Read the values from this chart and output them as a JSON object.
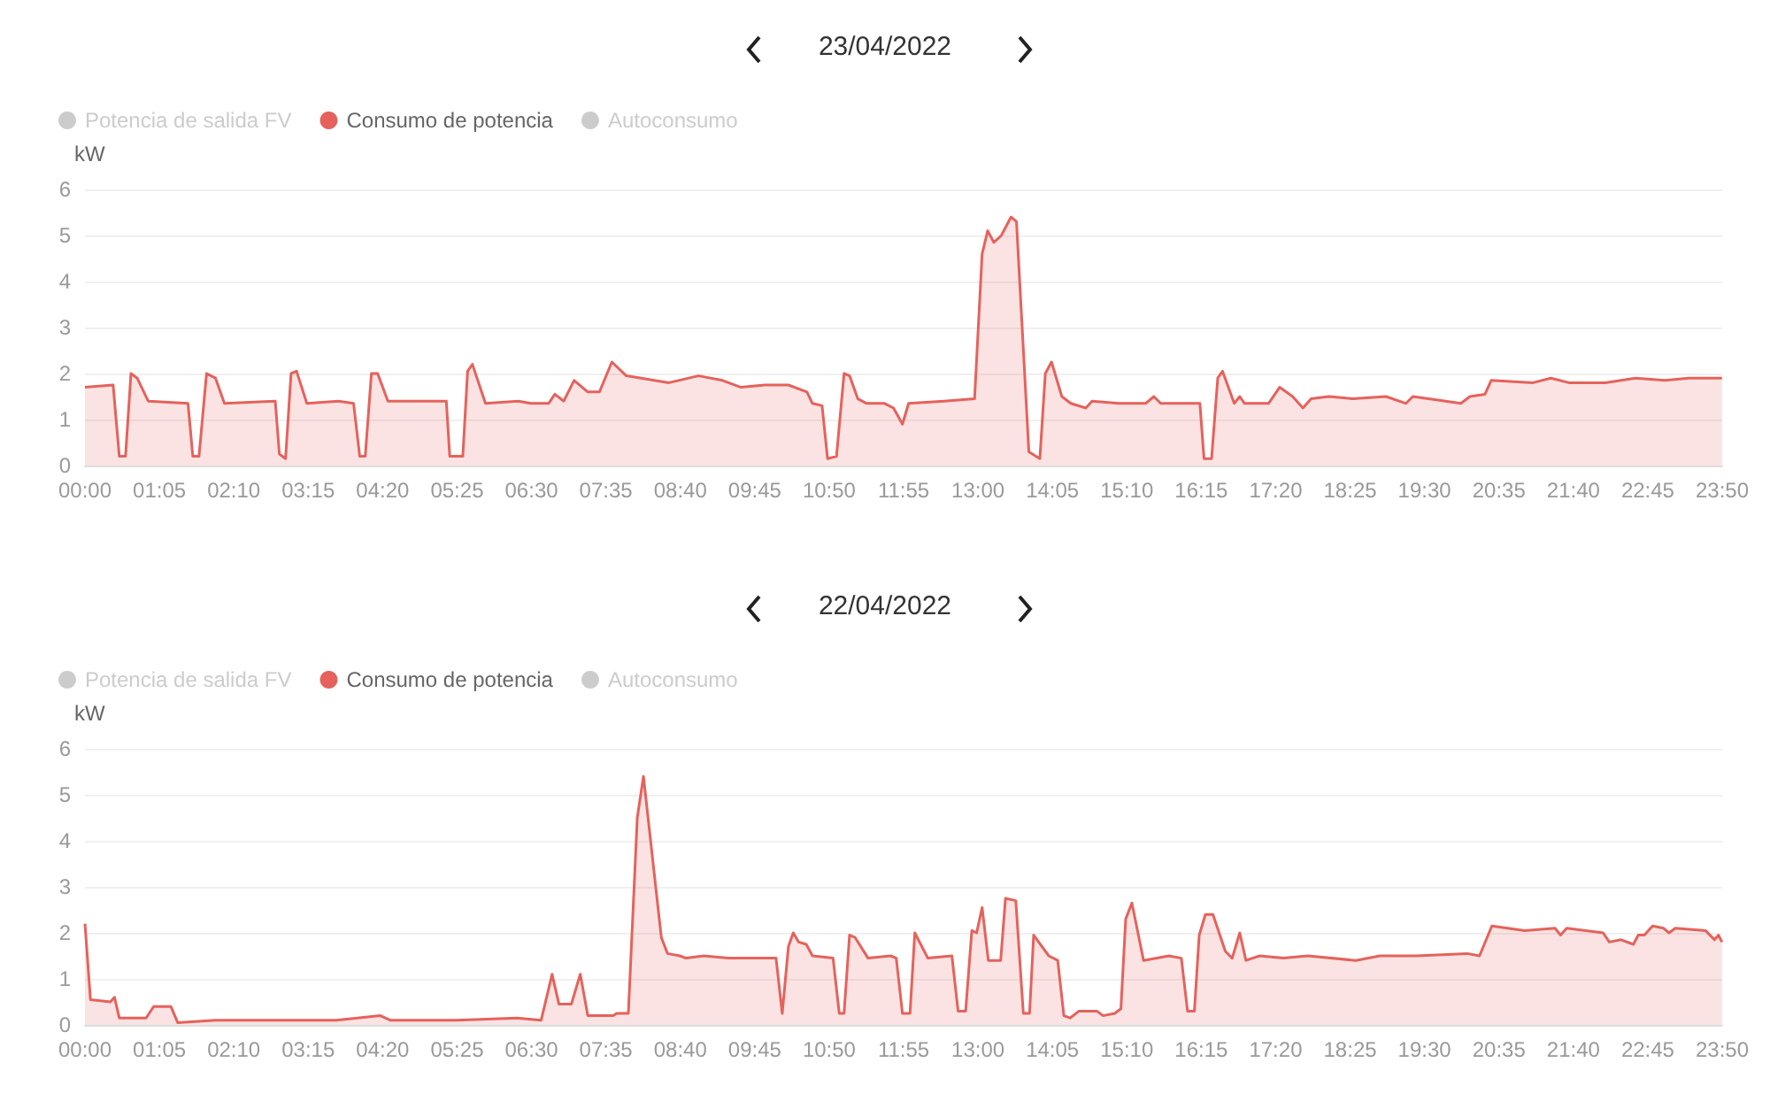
{
  "chart_data": [
    {
      "type": "area",
      "title": "23/04/2022",
      "ylabel": "kW",
      "legend": "top left",
      "grid": "y",
      "xlim": [
        0,
        23.8333
      ],
      "ylim": [
        0,
        6
      ],
      "yticks": [
        0,
        1,
        2,
        3,
        4,
        5,
        6
      ],
      "xticks": [
        {
          "value": 0,
          "label": "00:00"
        },
        {
          "value": 1.0833,
          "label": "01:05"
        },
        {
          "value": 2.1667,
          "label": "02:10"
        },
        {
          "value": 3.25,
          "label": "03:15"
        },
        {
          "value": 4.3333,
          "label": "04:20"
        },
        {
          "value": 5.4167,
          "label": "05:25"
        },
        {
          "value": 6.5,
          "label": "06:30"
        },
        {
          "value": 7.5833,
          "label": "07:35"
        },
        {
          "value": 8.6667,
          "label": "08:40"
        },
        {
          "value": 9.75,
          "label": "09:45"
        },
        {
          "value": 10.8333,
          "label": "10:50"
        },
        {
          "value": 11.9167,
          "label": "11:55"
        },
        {
          "value": 13,
          "label": "13:00"
        },
        {
          "value": 14.0833,
          "label": "14:05"
        },
        {
          "value": 15.1667,
          "label": "15:10"
        },
        {
          "value": 16.25,
          "label": "16:15"
        },
        {
          "value": 17.3333,
          "label": "17:20"
        },
        {
          "value": 18.4167,
          "label": "18:25"
        },
        {
          "value": 19.5,
          "label": "19:30"
        },
        {
          "value": 20.5833,
          "label": "20:35"
        },
        {
          "value": 21.6667,
          "label": "21:40"
        },
        {
          "value": 22.75,
          "label": "22:45"
        },
        {
          "value": 23.8333,
          "label": "23:50"
        }
      ],
      "series": [
        {
          "name": "Potencia de salida FV"
        },
        {
          "name": "Consumo de potencia",
          "color": "#e5625c",
          "x": [
            0,
            0.41,
            0.5,
            0.59,
            0.67,
            0.76,
            0.92,
            1.5,
            1.57,
            1.66,
            1.77,
            1.9,
            2.03,
            2.77,
            2.83,
            2.92,
            3.0,
            3.08,
            3.23,
            3.69,
            3.91,
            4.0,
            4.08,
            4.17,
            4.26,
            4.41,
            5.26,
            5.31,
            5.5,
            5.57,
            5.64,
            5.83,
            6.31,
            6.49,
            6.75,
            6.84,
            6.97,
            7.12,
            7.32,
            7.49,
            7.67,
            7.88,
            8.5,
            8.93,
            9.28,
            9.55,
            9.9,
            10.24,
            10.51,
            10.59,
            10.73,
            10.81,
            10.94,
            11.05,
            11.13,
            11.25,
            11.38,
            11.64,
            11.77,
            11.9,
            11.99,
            12.51,
            12.95,
            13.06,
            13.14,
            13.23,
            13.34,
            13.48,
            13.56,
            13.74,
            13.9,
            13.98,
            14.07,
            14.22,
            14.35,
            14.57,
            14.66,
            15.05,
            15.44,
            15.56,
            15.66,
            16.23,
            16.29,
            16.4,
            16.49,
            16.56,
            16.73,
            16.81,
            16.88,
            17.23,
            17.39,
            17.58,
            17.73,
            17.85,
            18.11,
            18.46,
            18.94,
            19.23,
            19.33,
            20.03,
            20.16,
            20.38,
            20.47,
            21.08,
            21.34,
            21.6,
            22.13,
            22.57,
            23.0,
            23.35,
            23.83
          ],
          "values": [
            1.7,
            1.75,
            0.2,
            0.2,
            2.0,
            1.9,
            1.4,
            1.35,
            0.2,
            0.2,
            2.0,
            1.9,
            1.35,
            1.4,
            0.25,
            0.15,
            2.0,
            2.05,
            1.35,
            1.4,
            1.35,
            0.2,
            0.2,
            2.0,
            2.0,
            1.4,
            1.4,
            0.2,
            0.2,
            2.05,
            2.2,
            1.35,
            1.4,
            1.35,
            1.35,
            1.55,
            1.4,
            1.85,
            1.6,
            1.6,
            2.25,
            1.95,
            1.8,
            1.95,
            1.85,
            1.7,
            1.75,
            1.75,
            1.6,
            1.35,
            1.3,
            0.15,
            0.2,
            2.0,
            1.95,
            1.45,
            1.35,
            1.35,
            1.25,
            0.9,
            1.35,
            1.4,
            1.45,
            4.6,
            5.1,
            4.85,
            5.0,
            5.4,
            5.3,
            0.3,
            0.15,
            2.0,
            2.25,
            1.5,
            1.35,
            1.25,
            1.4,
            1.35,
            1.35,
            1.5,
            1.35,
            1.35,
            0.15,
            0.15,
            1.9,
            2.05,
            1.35,
            1.5,
            1.35,
            1.35,
            1.7,
            1.5,
            1.25,
            1.45,
            1.5,
            1.45,
            1.5,
            1.35,
            1.5,
            1.35,
            1.5,
            1.55,
            1.85,
            1.8,
            1.9,
            1.8,
            1.8,
            1.9,
            1.85,
            1.9,
            1.9
          ]
        },
        {
          "name": "Autoconsumo"
        }
      ]
    },
    {
      "type": "area",
      "title": "22/04/2022",
      "ylabel": "kW",
      "legend": "top left",
      "grid": "y",
      "xlim": [
        0,
        23.8333
      ],
      "ylim": [
        0,
        6
      ],
      "yticks": [
        0,
        1,
        2,
        3,
        4,
        5,
        6
      ],
      "xticks": [
        {
          "value": 0,
          "label": "00:00"
        },
        {
          "value": 1.0833,
          "label": "01:05"
        },
        {
          "value": 2.1667,
          "label": "02:10"
        },
        {
          "value": 3.25,
          "label": "03:15"
        },
        {
          "value": 4.3333,
          "label": "04:20"
        },
        {
          "value": 5.4167,
          "label": "05:25"
        },
        {
          "value": 6.5,
          "label": "06:30"
        },
        {
          "value": 7.5833,
          "label": "07:35"
        },
        {
          "value": 8.6667,
          "label": "08:40"
        },
        {
          "value": 9.75,
          "label": "09:45"
        },
        {
          "value": 10.8333,
          "label": "10:50"
        },
        {
          "value": 11.9167,
          "label": "11:55"
        },
        {
          "value": 13,
          "label": "13:00"
        },
        {
          "value": 14.0833,
          "label": "14:05"
        },
        {
          "value": 15.1667,
          "label": "15:10"
        },
        {
          "value": 16.25,
          "label": "16:15"
        },
        {
          "value": 17.3333,
          "label": "17:20"
        },
        {
          "value": 18.4167,
          "label": "18:25"
        },
        {
          "value": 19.5,
          "label": "19:30"
        },
        {
          "value": 20.5833,
          "label": "20:35"
        },
        {
          "value": 21.6667,
          "label": "21:40"
        },
        {
          "value": 22.75,
          "label": "22:45"
        },
        {
          "value": 23.8333,
          "label": "23:50"
        }
      ],
      "series": [
        {
          "name": "Potencia de salida FV"
        },
        {
          "name": "Consumo de potencia",
          "color": "#e5625c",
          "x": [
            0,
            0.08,
            0.37,
            0.43,
            0.5,
            0.89,
            1.0,
            1.25,
            1.35,
            1.9,
            2.78,
            3.66,
            4.3,
            4.45,
            5.41,
            6.29,
            6.64,
            6.8,
            6.9,
            7.08,
            7.21,
            7.32,
            7.56,
            7.69,
            7.74,
            7.91,
            8.04,
            8.13,
            8.39,
            8.48,
            8.66,
            8.75,
            9.01,
            9.36,
            10.06,
            10.15,
            10.24,
            10.31,
            10.39,
            10.5,
            10.59,
            10.89,
            10.98,
            11.05,
            11.13,
            11.21,
            11.4,
            11.73,
            11.81,
            11.9,
            12.01,
            12.08,
            12.27,
            12.62,
            12.71,
            12.82,
            12.91,
            12.98,
            13.06,
            13.15,
            13.33,
            13.4,
            13.55,
            13.66,
            13.75,
            13.81,
            14.03,
            14.16,
            14.25,
            14.34,
            14.47,
            14.73,
            14.82,
            14.99,
            15.08,
            15.15,
            15.24,
            15.41,
            15.78,
            15.96,
            16.05,
            16.15,
            16.22,
            16.31,
            16.42,
            16.6,
            16.7,
            16.81,
            16.9,
            17.1,
            17.45,
            17.8,
            18.5,
            18.85,
            19.38,
            20.12,
            20.3,
            20.48,
            20.96,
            21.4,
            21.48,
            21.57,
            22.1,
            22.19,
            22.36,
            22.54,
            22.61,
            22.7,
            22.82,
            22.98,
            23.06,
            23.15,
            23.59,
            23.72,
            23.78,
            23.83
          ],
          "values": [
            2.2,
            0.55,
            0.5,
            0.6,
            0.15,
            0.15,
            0.4,
            0.4,
            0.05,
            0.1,
            0.1,
            0.1,
            0.2,
            0.1,
            0.1,
            0.15,
            0.1,
            1.1,
            0.45,
            0.45,
            1.1,
            0.2,
            0.2,
            0.2,
            0.25,
            0.25,
            4.5,
            5.4,
            1.9,
            1.55,
            1.5,
            1.45,
            1.5,
            1.45,
            1.45,
            0.25,
            1.7,
            2.0,
            1.8,
            1.75,
            1.5,
            1.45,
            0.25,
            0.25,
            1.95,
            1.9,
            1.45,
            1.5,
            1.45,
            0.25,
            0.25,
            2.0,
            1.45,
            1.5,
            0.3,
            0.3,
            2.05,
            2.0,
            2.55,
            1.4,
            1.4,
            2.75,
            2.7,
            0.25,
            0.25,
            1.95,
            1.5,
            1.4,
            0.2,
            0.15,
            0.3,
            0.3,
            0.2,
            0.25,
            0.35,
            2.3,
            2.65,
            1.4,
            1.5,
            1.45,
            0.3,
            0.3,
            1.95,
            2.4,
            2.4,
            1.6,
            1.45,
            2.0,
            1.4,
            1.5,
            1.45,
            1.5,
            1.4,
            1.5,
            1.5,
            1.55,
            1.5,
            2.15,
            2.05,
            2.1,
            1.95,
            2.1,
            2.0,
            1.8,
            1.85,
            1.75,
            1.95,
            1.95,
            2.15,
            2.1,
            2.0,
            2.1,
            2.05,
            1.85,
            1.95,
            1.8
          ]
        },
        {
          "name": "Autoconsumo"
        }
      ]
    }
  ]
}
